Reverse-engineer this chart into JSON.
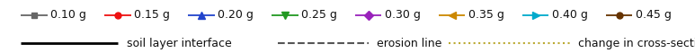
{
  "legend_entries": [
    {
      "label": "0.10 g",
      "color": "#666666",
      "marker": "s",
      "linestyle": "-"
    },
    {
      "label": "0.15 g",
      "color": "#ee1111",
      "marker": "o",
      "linestyle": "-"
    },
    {
      "label": "0.20 g",
      "color": "#2244cc",
      "marker": "^",
      "linestyle": "-"
    },
    {
      "label": "0.25 g",
      "color": "#229922",
      "marker": "v",
      "linestyle": "-"
    },
    {
      "label": "0.30 g",
      "color": "#9922bb",
      "marker": "D",
      "linestyle": "-"
    },
    {
      "label": "0.35 g",
      "color": "#cc8800",
      "marker": "<",
      "linestyle": "-"
    },
    {
      "label": "0.40 g",
      "color": "#00aacc",
      "marker": ">",
      "linestyle": "-"
    },
    {
      "label": "0.45 g",
      "color": "#663300",
      "marker": "o",
      "linestyle": "-"
    }
  ],
  "line_entries": [
    {
      "label": "soil layer interface",
      "color": "#000000",
      "linestyle": "-",
      "linewidth": 2.0
    },
    {
      "label": "erosion line",
      "color": "#555555",
      "linestyle": "--",
      "linewidth": 1.5
    },
    {
      "label": "change in cross-section",
      "color": "#bbaa33",
      "linestyle": ":",
      "linewidth": 1.5
    }
  ],
  "bg_color": "#ffffff",
  "text_color": "#111111",
  "fontsize": 9.0,
  "figwidth": 7.73,
  "figheight": 0.59,
  "dpi": 100
}
